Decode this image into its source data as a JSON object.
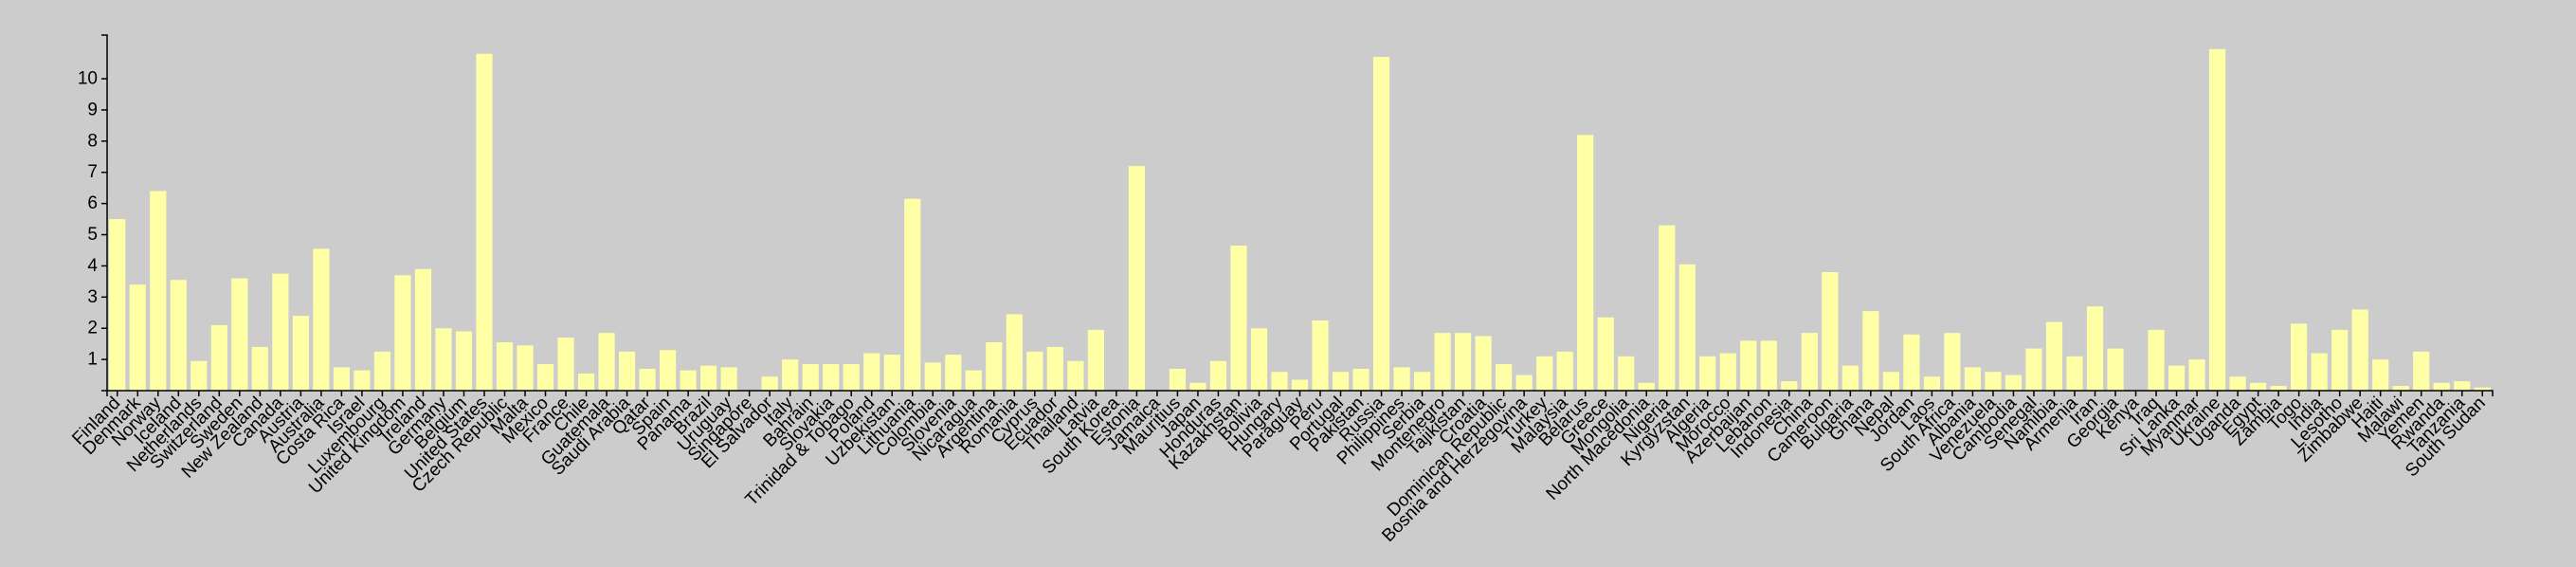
{
  "chart_data": {
    "type": "bar",
    "title": "",
    "xlabel": "",
    "ylabel": "",
    "ylim": [
      0,
      11.4
    ],
    "yticks": [
      1,
      2,
      3,
      4,
      5,
      6,
      7,
      8,
      9,
      10
    ],
    "grid": false,
    "bar_color": "#ffffa5",
    "background_color": "#cccccc",
    "categories": [
      "Finland",
      "Denmark",
      "Norway",
      "Iceland",
      "Netherlands",
      "Switzerland",
      "Sweden",
      "New Zealand",
      "Canada",
      "Austria",
      "Australia",
      "Costa Rica",
      "Israel",
      "Luxembourg",
      "United Kingdom",
      "Ireland",
      "Germany",
      "Belgium",
      "United States",
      "Czech Republic",
      "Malta",
      "Mexico",
      "France",
      "Chile",
      "Guatemala",
      "Saudi Arabia",
      "Qatar",
      "Spain",
      "Panama",
      "Brazil",
      "Uruguay",
      "Singapore",
      "El Salvador",
      "Italy",
      "Bahrain",
      "Slovakia",
      "Trinidad & Tobago",
      "Poland",
      "Uzbekistan",
      "Lithuania",
      "Colombia",
      "Slovenia",
      "Nicaragua",
      "Argentina",
      "Romania",
      "Cyprus",
      "Ecuador",
      "Thailand",
      "Latvia",
      "South Korea",
      "Estonia",
      "Jamaica",
      "Mauritius",
      "Japan",
      "Honduras",
      "Kazakhstan",
      "Bolivia",
      "Hungary",
      "Paraguay",
      "Peru",
      "Portugal",
      "Pakistan",
      "Russia",
      "Philippines",
      "Serbia",
      "Montenegro",
      "Tajikistan",
      "Croatia",
      "Dominican Republic",
      "Bosnia and Herzegovina",
      "Turkey",
      "Malaysia",
      "Belarus",
      "Greece",
      "Mongolia",
      "North Macedonia",
      "Nigeria",
      "Kyrgyzstan",
      "Algeria",
      "Morocco",
      "Azerbaijan",
      "Lebanon",
      "Indonesia",
      "China",
      "Cameroon",
      "Bulgaria",
      "Ghana",
      "Nepal",
      "Jordan",
      "Laos",
      "South Africa",
      "Albania",
      "Venezuela",
      "Cambodia",
      "Senegal",
      "Namibia",
      "Armenia",
      "Iran",
      "Georgia",
      "Kenya",
      "Iraq",
      "Sri Lanka",
      "Myanmar",
      "Ukraine",
      "Uganda",
      "Egypt",
      "Zambia",
      "Togo",
      "India",
      "Lesotho",
      "Zimbabwe",
      "Haiti",
      "Malawi",
      "Yemen",
      "Rwanda",
      "Tanzania",
      "South Sudan"
    ],
    "values": [
      5.5,
      3.4,
      6.4,
      3.55,
      0.95,
      2.1,
      3.6,
      1.4,
      3.75,
      2.4,
      4.55,
      0.75,
      0.65,
      1.25,
      3.7,
      3.9,
      2.0,
      1.9,
      10.8,
      1.55,
      1.45,
      0.85,
      1.7,
      0.55,
      1.85,
      1.25,
      0.7,
      1.3,
      0.65,
      0.8,
      0.75,
      0.0,
      0.45,
      1.0,
      0.85,
      0.85,
      0.85,
      1.2,
      1.15,
      6.15,
      0.9,
      1.15,
      0.65,
      1.55,
      2.45,
      1.25,
      1.4,
      0.95,
      1.95,
      0.0,
      7.2,
      0.0,
      0.7,
      0.25,
      0.95,
      4.65,
      2.0,
      0.6,
      0.35,
      2.25,
      0.6,
      0.7,
      10.7,
      0.75,
      0.6,
      1.85,
      1.85,
      1.75,
      0.85,
      0.5,
      1.1,
      1.25,
      8.2,
      2.35,
      1.1,
      0.25,
      5.3,
      4.05,
      1.1,
      1.2,
      1.6,
      1.6,
      0.3,
      1.85,
      3.8,
      0.8,
      2.55,
      0.6,
      1.8,
      0.45,
      1.85,
      0.75,
      0.6,
      0.5,
      1.35,
      2.2,
      1.1,
      2.7,
      1.35,
      0.0,
      1.95,
      0.8,
      1.0,
      10.95,
      0.45,
      0.25,
      0.15,
      2.15,
      1.2,
      1.95,
      2.6,
      1.0,
      0.15,
      1.25,
      0.25,
      0.3,
      0.1
    ]
  }
}
